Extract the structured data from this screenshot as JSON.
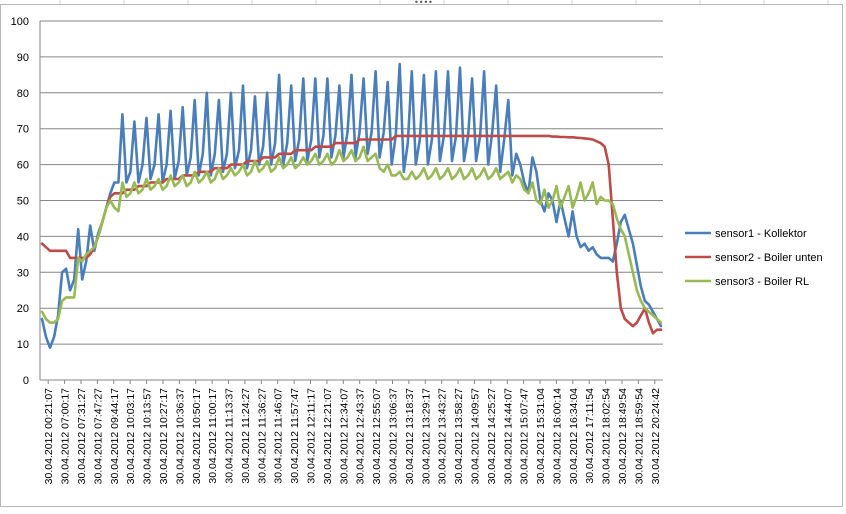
{
  "chart_data": {
    "type": "line",
    "title": "",
    "xlabel": "",
    "ylabel": "",
    "ylim": [
      0,
      100
    ],
    "yticks": [
      0,
      10,
      20,
      30,
      40,
      50,
      60,
      70,
      80,
      90,
      100
    ],
    "grid": true,
    "legend_position": "right",
    "x_tick_labels": [
      "30.04.2012 00:21:07",
      "30.04.2012 07:00:17",
      "30.04.2012 07:31:27",
      "30.04.2012 07:47:27",
      "30.04.2012 09:44:17",
      "30.04.2012 10:03:17",
      "30.04.2012 10:13:57",
      "30.04.2012 10:27:17",
      "30.04.2012 10:36:37",
      "30.04.2012 10:50:17",
      "30.04.2012 11:00:17",
      "30.04.2012 11:13:37",
      "30.04.2012 11:24:27",
      "30.04.2012 11:36:27",
      "30.04.2012 11:46:07",
      "30.04.2012 11:57:47",
      "30.04.2012 12:11:17",
      "30.04.2012 12:21:07",
      "30.04.2012 12:34:07",
      "30.04.2012 12:43:37",
      "30.04.2012 12:55:07",
      "30.04.2012 13:06:37",
      "30.04.2012 13:18:37",
      "30.04.2012 13:29:17",
      "30.04.2012 13:43:27",
      "30.04.2012 13:58:27",
      "30.04.2012 14:09:57",
      "30.04.2012 14:25:27",
      "30.04.2012 14:44:07",
      "30.04.2012 15:07:47",
      "30.04.2012 15:31:04",
      "30.04.2012 16:00:14",
      "30.04.2012 16:34:04",
      "30.04.2012 17:11:54",
      "30.04.2012 18:02:54",
      "30.04.2012 18:49:54",
      "30.04.2012 18:59:54",
      "30.04.2012 20:24:42"
    ],
    "series": [
      {
        "name": "sensor1 - Kollektor",
        "color": "#4a7ebb",
        "values": [
          17,
          12,
          9,
          12,
          18,
          30,
          31,
          25,
          28,
          42,
          28,
          33,
          43,
          36,
          41,
          44,
          48,
          52,
          55,
          55,
          74,
          55,
          58,
          72,
          55,
          60,
          73,
          56,
          60,
          74,
          55,
          60,
          75,
          56,
          61,
          76,
          57,
          62,
          78,
          57,
          63,
          80,
          57,
          63,
          78,
          58,
          63,
          80,
          59,
          64,
          82,
          59,
          64,
          79,
          60,
          65,
          80,
          60,
          66,
          85,
          60,
          66,
          82,
          61,
          67,
          84,
          61,
          67,
          84,
          62,
          68,
          84,
          62,
          68,
          82,
          62,
          69,
          85,
          62,
          69,
          84,
          63,
          69,
          86,
          62,
          69,
          83,
          60,
          68,
          88,
          58,
          66,
          86,
          60,
          67,
          85,
          60,
          67,
          86,
          61,
          68,
          86,
          61,
          68,
          87,
          61,
          68,
          84,
          61,
          68,
          86,
          60,
          69,
          82,
          58,
          67,
          78,
          57,
          63,
          60,
          55,
          52,
          62,
          58,
          50,
          47,
          52,
          50,
          44,
          50,
          45,
          40,
          47,
          40,
          37,
          38,
          36,
          37,
          35,
          34,
          34,
          34,
          33,
          38,
          44,
          46,
          42,
          38,
          32,
          26,
          22,
          21,
          19,
          17,
          15
        ]
      },
      {
        "name": "sensor2 - Boiler unten",
        "color": "#be4b48",
        "values": [
          38,
          37,
          36,
          36,
          36,
          36,
          36,
          34,
          34,
          34,
          34,
          34,
          35,
          37,
          40,
          44,
          48,
          51,
          52,
          52,
          52,
          53,
          53,
          53,
          54,
          54,
          54,
          55,
          55,
          55,
          55,
          56,
          56,
          56,
          56,
          57,
          57,
          57,
          57,
          58,
          58,
          58,
          58,
          59,
          59,
          59,
          59,
          60,
          60,
          60,
          60,
          61,
          61,
          61,
          61,
          62,
          62,
          62,
          62,
          63,
          63,
          63,
          63,
          64,
          64,
          64,
          64,
          64,
          65,
          65,
          65,
          65,
          65,
          66,
          66,
          66,
          66,
          66,
          66,
          67,
          67,
          67,
          67,
          67,
          67,
          67,
          67,
          67,
          68,
          68,
          68,
          68,
          68,
          68,
          68,
          68,
          68,
          68,
          68,
          68,
          68,
          68,
          68,
          68,
          68,
          68,
          68,
          68,
          68,
          68,
          68,
          68,
          68,
          68,
          68,
          68,
          68,
          68,
          68,
          68,
          68,
          68,
          68,
          68,
          68,
          68,
          68,
          67.8,
          67.8,
          67.7,
          67.7,
          67.6,
          67.6,
          67.5,
          67.4,
          67.3,
          67.2,
          67,
          66.5,
          66,
          65,
          60,
          45,
          30,
          20,
          17,
          16,
          15,
          16,
          18,
          20,
          16,
          13,
          14,
          14
        ]
      },
      {
        "name": "sensor3 - Boiler RL",
        "color": "#98b954",
        "values": [
          19,
          17,
          16,
          16,
          17,
          22,
          23,
          23,
          23,
          34,
          33,
          35,
          36,
          37,
          40,
          44,
          48,
          50,
          48,
          47,
          55,
          51,
          52,
          55,
          52,
          53,
          56,
          53,
          54,
          56,
          53,
          54,
          57,
          54,
          55,
          57,
          54,
          55,
          58,
          55,
          56,
          58,
          55,
          56,
          59,
          56,
          57,
          59,
          57,
          58,
          60,
          57,
          58,
          61,
          58,
          59,
          61,
          58,
          59,
          62,
          59,
          60,
          62,
          59,
          60,
          62,
          60,
          61,
          63,
          60,
          61,
          63,
          60,
          61,
          64,
          61,
          62,
          64,
          61,
          62,
          65,
          61,
          62,
          63,
          59,
          58,
          60,
          57,
          57,
          58,
          56,
          56,
          58,
          56,
          57,
          59,
          56,
          57,
          59,
          56,
          57,
          59,
          56,
          57,
          59,
          56,
          57,
          59,
          56,
          57,
          59,
          56,
          57,
          59,
          56,
          57,
          58,
          55,
          57,
          56,
          53,
          52,
          55,
          50,
          49,
          53,
          48,
          50,
          54,
          48,
          51,
          54,
          48,
          51,
          55,
          50,
          52,
          55,
          49,
          51,
          50,
          50,
          49,
          45,
          42,
          40,
          35,
          30,
          25,
          22,
          20,
          19,
          18,
          17,
          16
        ]
      }
    ]
  }
}
